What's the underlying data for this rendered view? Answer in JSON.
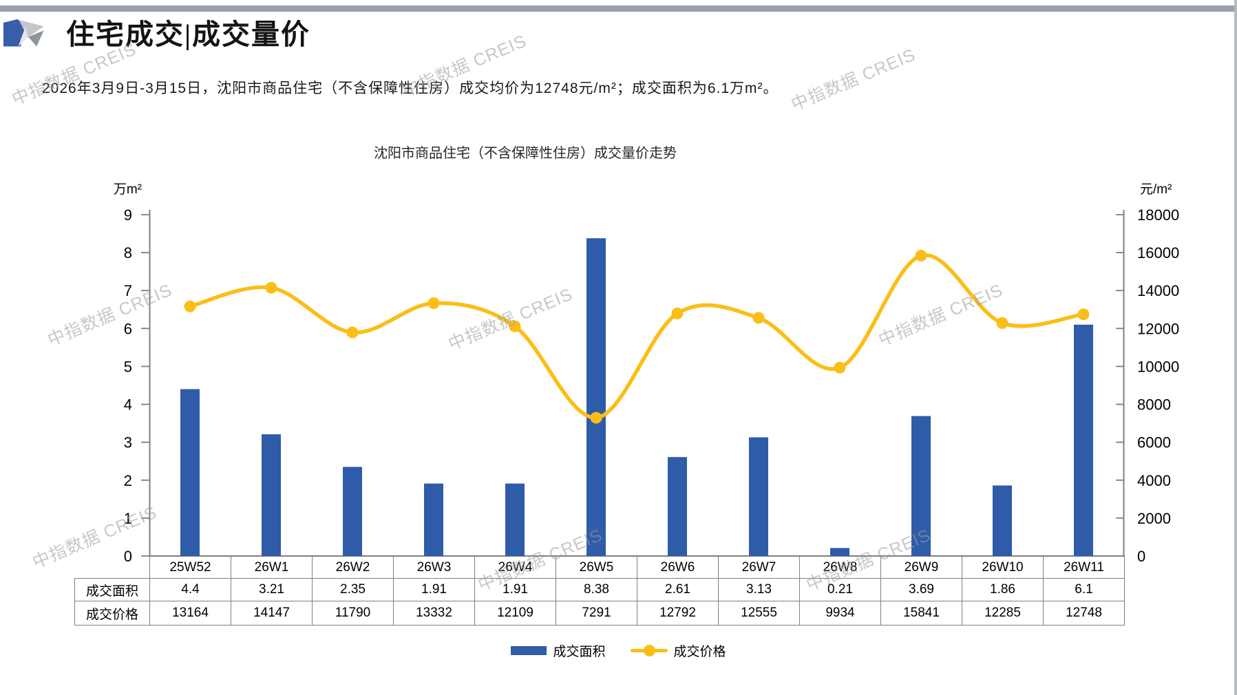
{
  "header": {
    "title": "住宅成交|成交量价",
    "subtitle": "2026年3月9日-3月15日，沈阳市商品住宅（不含保障性住房）成交均价为12748元/m²；成交面积为6.1万m²。"
  },
  "watermark": {
    "text": "中指数据 CREIS"
  },
  "logo": {
    "blue": "#3A5DA9",
    "gray_light": "#C3C7CC",
    "gray_pale": "#E4E6E9",
    "gray_mid": "#8F959B"
  },
  "chart_data": {
    "type": "bar+line",
    "title": "沈阳市商品住宅（不含保障性住房）成交量价走势",
    "categories": [
      "25W52",
      "26W1",
      "26W2",
      "26W3",
      "26W4",
      "26W5",
      "26W6",
      "26W7",
      "26W8",
      "26W9",
      "26W10",
      "26W11"
    ],
    "series": [
      {
        "name": "成交面积",
        "type": "bar",
        "axis": "left",
        "color": "#2F5CA9",
        "values": [
          4.4,
          3.21,
          2.35,
          1.91,
          1.91,
          8.38,
          2.61,
          3.13,
          0.21,
          3.69,
          1.86,
          6.1
        ]
      },
      {
        "name": "成交价格",
        "type": "line",
        "axis": "right",
        "color": "#FABE16",
        "values": [
          13164,
          14147,
          11790,
          13332,
          12109,
          7291,
          12792,
          12555,
          9934,
          15841,
          12285,
          12748
        ]
      }
    ],
    "left_axis": {
      "label": "万m²",
      "min": 0,
      "max": 9,
      "step": 1,
      "ticks": [
        0,
        1,
        2,
        3,
        4,
        5,
        6,
        7,
        8,
        9
      ]
    },
    "right_axis": {
      "label": "元/m²",
      "min": 0,
      "max": 18000,
      "step": 2000,
      "ticks": [
        0,
        2000,
        4000,
        6000,
        8000,
        10000,
        12000,
        14000,
        16000,
        18000
      ]
    },
    "axis_color": "#7F7F7F",
    "grid": false,
    "legend_position": "bottom",
    "line_smooth": true
  }
}
